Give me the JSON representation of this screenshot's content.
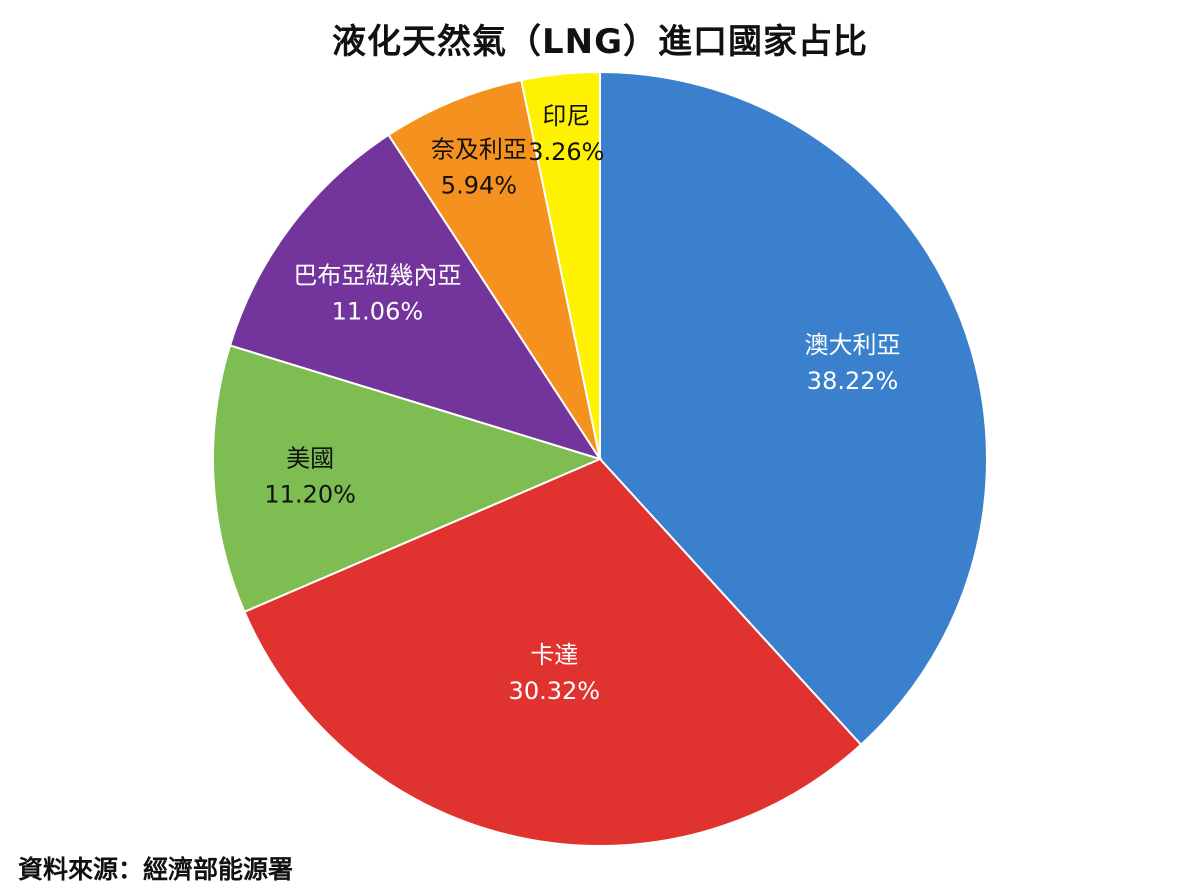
{
  "chart_data": {
    "type": "pie",
    "title": "液化天然氣（LNG）進口國家占比",
    "source": "資料來源：經濟部能源署",
    "start": "top",
    "direction": "clockwise",
    "slices": [
      {
        "label": "澳大利亞",
        "value": 38.22,
        "display": "38.22%",
        "color": "#3a80cc",
        "text_color": "#ffffff"
      },
      {
        "label": "卡達",
        "value": 30.32,
        "display": "30.32%",
        "color": "#e03330",
        "text_color": "#ffffff"
      },
      {
        "label": "美國",
        "value": 11.2,
        "display": "11.20%",
        "color": "#7dbd52",
        "text_color": "#111111"
      },
      {
        "label": "巴布亞紐幾內亞",
        "value": 11.06,
        "display": "11.06%",
        "color": "#73359b",
        "text_color": "#ffffff"
      },
      {
        "label": "奈及利亞",
        "value": 5.94,
        "display": "5.94%",
        "color": "#f5921f",
        "text_color": "#111111"
      },
      {
        "label": "印尼",
        "value": 3.26,
        "display": "3.26%",
        "color": "#fff200",
        "text_color": "#111111"
      }
    ]
  }
}
